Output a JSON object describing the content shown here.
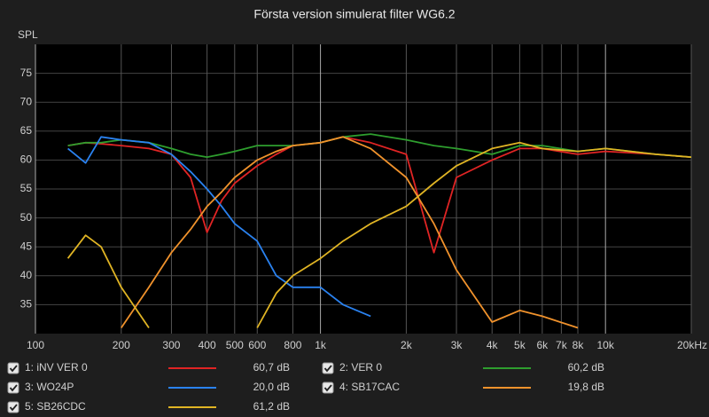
{
  "chart_data": {
    "type": "line",
    "title": "Första version simulerat filter WG6.2",
    "y_label": "SPL",
    "xscale": "log",
    "grid": true,
    "xlim": [
      100,
      20000
    ],
    "ylim": [
      30,
      80
    ],
    "xticks": [
      100,
      200,
      300,
      400,
      500,
      600,
      800,
      {
        "value": 1000,
        "label": "1k"
      },
      {
        "value": 2000,
        "label": "2k"
      },
      {
        "value": 3000,
        "label": "3k"
      },
      {
        "value": 4000,
        "label": "4k"
      },
      {
        "value": 5000,
        "label": "5k"
      },
      {
        "value": 6000,
        "label": "6k"
      },
      {
        "value": 7000,
        "label": "7k"
      },
      {
        "value": 8000,
        "label": "8k"
      },
      {
        "value": 10000,
        "label": "10k"
      },
      {
        "value": 20000,
        "label": "20kHz"
      }
    ],
    "yticks": [
      35,
      40,
      45,
      50,
      55,
      60,
      65,
      70,
      75
    ],
    "x": [
      130,
      150,
      170,
      200,
      250,
      300,
      350,
      400,
      450,
      500,
      600,
      700,
      800,
      1000,
      1200,
      1500,
      2000,
      2500,
      3000,
      4000,
      5000,
      6000,
      8000,
      10000,
      15000,
      20000
    ],
    "series": [
      {
        "name": "1: iNV VER  0",
        "color": "#e02424",
        "level": "60,7 dB",
        "values": [
          62.5,
          63,
          62.8,
          62.5,
          62,
          61,
          57,
          47.5,
          53,
          56,
          59,
          61,
          62.5,
          63,
          64,
          63,
          61,
          44,
          57,
          60,
          62,
          62,
          61,
          61.5,
          61,
          60.5
        ]
      },
      {
        "name": "2: VER 0",
        "color": "#2e9e2e",
        "level": "60,2 dB",
        "values": [
          62.5,
          63,
          63,
          63.5,
          63,
          62,
          61,
          60.5,
          61,
          61.5,
          62.5,
          62.5,
          62.5,
          63,
          64,
          64.5,
          63.5,
          62.5,
          62,
          61,
          62.5,
          62.5,
          61.5,
          62,
          61,
          60.5
        ]
      },
      {
        "name": "3: WO24P",
        "color": "#2a82f0",
        "level": "20,0 dB",
        "values": [
          62,
          59.5,
          64,
          63.5,
          63,
          61,
          58,
          55,
          52,
          49,
          46,
          40,
          38,
          38,
          35,
          33,
          null,
          null,
          null,
          null,
          null,
          null,
          null,
          null,
          null,
          null
        ]
      },
      {
        "name": "4: SB17CAC",
        "color": "#f0922c",
        "level": "19,8 dB",
        "values": [
          null,
          null,
          null,
          31,
          38,
          44,
          48,
          52,
          54.5,
          57,
          60,
          61.5,
          62.5,
          63,
          64,
          62,
          57,
          49,
          41,
          32,
          34,
          33,
          31,
          null,
          null,
          null
        ]
      },
      {
        "name": "5: SB26CDC",
        "color": "#e0b424",
        "level": "61,2 dB",
        "values": [
          43,
          47,
          45,
          38,
          31,
          null,
          null,
          null,
          null,
          null,
          31,
          37,
          40,
          43,
          46,
          49,
          52,
          56,
          59,
          62,
          63,
          62,
          61.5,
          62,
          61,
          60.5
        ]
      }
    ]
  }
}
